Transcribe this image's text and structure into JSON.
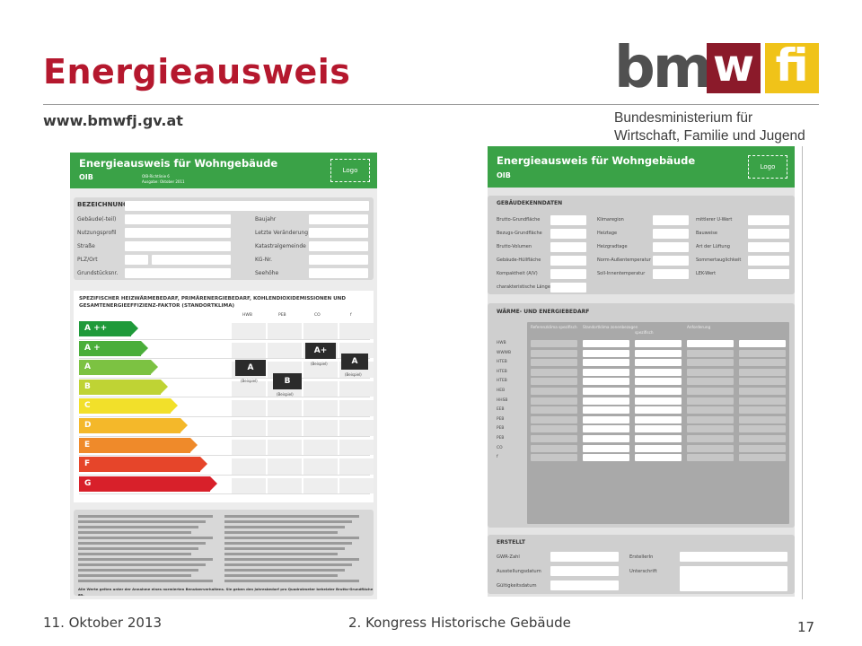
{
  "slide": {
    "title": "Energieausweis",
    "url": "www.bmwfj.gv.at",
    "logo": {
      "bm": "bm",
      "w": "w",
      "fi": "fi",
      "ministry_line1": "Bundesministerium für",
      "ministry_line2": "Wirtschaft, Familie und Jugend"
    },
    "footer": {
      "date": "11. Oktober 2013",
      "event": "2. Kongress Historische Gebäude",
      "page": "17"
    }
  },
  "colors": {
    "title": "#b5182e",
    "green": "#3aa247",
    "logo_w": "#8b1a2a",
    "logo_fi": "#f0c319"
  },
  "left_doc": {
    "header": "Energieausweis für Wohngebäude",
    "logo_label": "Logo",
    "oib": "OIB",
    "oib_sub1": "OIB-Richtlinie 6",
    "oib_sub2": "Ausgabe: Oktober 2011",
    "bezeichnung": "BEZEICHNUNG",
    "fields_left": [
      "Gebäude(-teil)",
      "Nutzungsprofil",
      "Straße",
      "PLZ/Ort",
      "Grundstücksnr."
    ],
    "fields_right": [
      "Baujahr",
      "Letzte Veränderung",
      "Katastralgemeinde",
      "KG-Nr.",
      "Seehöhe"
    ],
    "scale_title_1": "SPEZIFISCHER HEIZWÄRMEBEDARF, PRIMÄRENERGIEBEDARF, KOHLENDIOXIDEMISSIONEN UND",
    "scale_title_2": "GESAMTENERGIEEFFIZIENZ-FAKTOR (STANDORTKLIMA)",
    "col_heads": [
      "HWB",
      "PEB",
      "CO",
      "f"
    ],
    "classes": [
      "A ++",
      "A +",
      "A",
      "B",
      "C",
      "D",
      "E",
      "F",
      "G"
    ],
    "class_colors": [
      "#1f9a3a",
      "#4aae3a",
      "#7cc242",
      "#bfd334",
      "#f2e02a",
      "#f4b82a",
      "#ef8a2a",
      "#e6452a",
      "#d8202a"
    ],
    "markers": [
      {
        "label": "A",
        "note": "(Beispiel)"
      },
      {
        "label": "B",
        "note": "(Beispiel)"
      },
      {
        "label": "A+",
        "note": "(Beispiel)"
      },
      {
        "label": "A",
        "note": "(Beispiel)"
      }
    ],
    "note_text": "Alle Werte gelten unter der Annahme eines normierten Benutzerverhaltens. Sie geben den Jahresbedarf pro Quadratmeter beheizter Brutto-Grundfläche an."
  },
  "right_doc": {
    "header": "Energieausweis für Wohngebäude",
    "logo_label": "Logo",
    "oib": "OIB",
    "kenndaten": "GEBÄUDEKENNDATEN",
    "col1": [
      "Brutto-Grundfläche",
      "Bezugs-Grundfläche",
      "Brutto-Volumen",
      "Gebäude-Hüllfläche",
      "Kompaktheit (A/V)",
      "charakteristische Länge"
    ],
    "col2": [
      "Klimaregion",
      "Heiztage",
      "Heizgradtage",
      "Norm-Außentemperatur",
      "Soll-Innentemperatur"
    ],
    "col3": [
      "mittlerer U-Wert",
      "Bauweise",
      "Art der Lüftung",
      "Sommertauglichkeit",
      "LEK-Wert"
    ],
    "waerme": "WÄRME- UND ENERGIEBEDARF",
    "waerme_cols": [
      "Referenzklima spezifisch",
      "Standortklima zonenbezogen",
      "spezifisch",
      "Anforderung"
    ],
    "waerme_rows": [
      "HWB",
      "WWWB",
      "HTEB",
      "HTEB",
      "HTEB",
      "HEB",
      "HHSB",
      "EEB",
      "PEB",
      "PEB",
      "PEB",
      "CO",
      "f"
    ],
    "erstellt": "ERSTELLT",
    "erstellt_left": [
      "GWR-Zahl",
      "Ausstellungsdatum",
      "Gültigkeitsdatum"
    ],
    "erstellt_right": [
      "ErstellerIn",
      "Unterschrift"
    ]
  }
}
